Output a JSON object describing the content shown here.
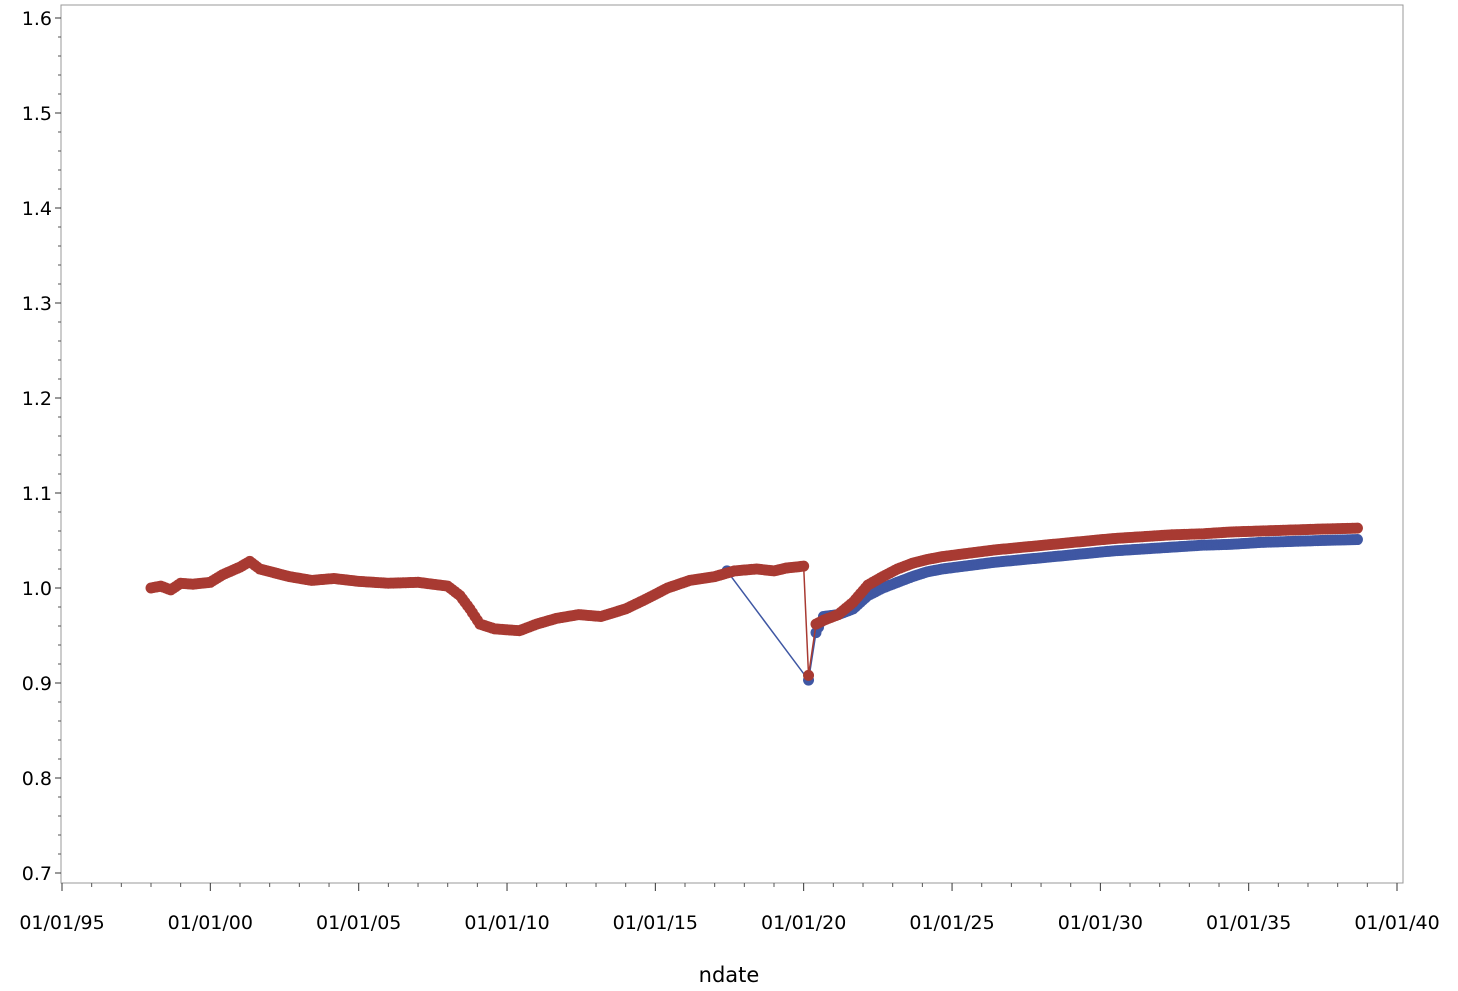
{
  "chart_data": {
    "type": "scatter",
    "title": "",
    "xlabel": "ndate",
    "ylabel": "",
    "x_range": [
      "1995-01-01",
      "2040-01-01"
    ],
    "ylim": [
      0.7,
      1.6
    ],
    "x_ticks": [
      {
        "date": "1995-01-01",
        "label": "01/01/95"
      },
      {
        "date": "2000-01-01",
        "label": "01/01/00"
      },
      {
        "date": "2005-01-01",
        "label": "01/01/05"
      },
      {
        "date": "2010-01-01",
        "label": "01/01/10"
      },
      {
        "date": "2015-01-01",
        "label": "01/01/15"
      },
      {
        "date": "2020-01-01",
        "label": "01/01/20"
      },
      {
        "date": "2025-01-01",
        "label": "01/01/25"
      },
      {
        "date": "2030-01-01",
        "label": "01/01/30"
      },
      {
        "date": "2035-01-01",
        "label": "01/01/35"
      },
      {
        "date": "2040-01-01",
        "label": "01/01/40"
      }
    ],
    "y_ticks": [
      {
        "value": 0.7,
        "label": "0.7"
      },
      {
        "value": 0.8,
        "label": "0.8"
      },
      {
        "value": 0.9,
        "label": "0.9"
      },
      {
        "value": 1.0,
        "label": "1.0"
      },
      {
        "value": 1.1,
        "label": "1.1"
      },
      {
        "value": 1.2,
        "label": "1.2"
      },
      {
        "value": 1.3,
        "label": "1.3"
      },
      {
        "value": 1.4,
        "label": "1.4"
      },
      {
        "value": 1.5,
        "label": "1.5"
      },
      {
        "value": 1.6,
        "label": "1.6"
      }
    ],
    "grid": false,
    "legend": "none",
    "series": [
      {
        "color": "#3f57a3",
        "points": [
          [
            "2017-06-01",
            1.018
          ],
          [
            "2020-03-01",
            0.903
          ],
          [
            "2020-06-01",
            0.953
          ],
          [
            "2020-09-01",
            0.97
          ],
          [
            "2021-03-01",
            0.972
          ],
          [
            "2021-09-01",
            0.978
          ],
          [
            "2022-03-01",
            0.992
          ],
          [
            "2022-09-01",
            1.0
          ],
          [
            "2023-03-01",
            1.006
          ],
          [
            "2023-09-01",
            1.012
          ],
          [
            "2024-03-01",
            1.017
          ],
          [
            "2024-09-01",
            1.02
          ],
          [
            "2025-06-01",
            1.023
          ],
          [
            "2026-06-01",
            1.027
          ],
          [
            "2027-06-01",
            1.03
          ],
          [
            "2028-06-01",
            1.033
          ],
          [
            "2029-06-01",
            1.036
          ],
          [
            "2030-06-01",
            1.039
          ],
          [
            "2031-06-01",
            1.041
          ],
          [
            "2032-06-01",
            1.043
          ],
          [
            "2033-06-01",
            1.045
          ],
          [
            "2034-06-01",
            1.046
          ],
          [
            "2035-06-01",
            1.048
          ],
          [
            "2036-06-01",
            1.049
          ],
          [
            "2037-06-01",
            1.05
          ],
          [
            "2038-09-01",
            1.051
          ]
        ]
      },
      {
        "color": "#a83a32",
        "points": [
          [
            "1998-01-01",
            1.0
          ],
          [
            "1998-05-01",
            1.002
          ],
          [
            "1998-09-01",
            0.998
          ],
          [
            "1999-01-01",
            1.005
          ],
          [
            "1999-06-01",
            1.004
          ],
          [
            "2000-01-01",
            1.006
          ],
          [
            "2000-06-01",
            1.014
          ],
          [
            "2001-01-01",
            1.022
          ],
          [
            "2001-05-01",
            1.028
          ],
          [
            "2001-09-01",
            1.02
          ],
          [
            "2002-03-01",
            1.016
          ],
          [
            "2002-09-01",
            1.012
          ],
          [
            "2003-06-01",
            1.008
          ],
          [
            "2004-03-01",
            1.01
          ],
          [
            "2005-01-01",
            1.007
          ],
          [
            "2006-01-01",
            1.005
          ],
          [
            "2007-01-01",
            1.006
          ],
          [
            "2008-01-01",
            1.002
          ],
          [
            "2008-06-01",
            0.992
          ],
          [
            "2008-10-01",
            0.978
          ],
          [
            "2009-02-01",
            0.962
          ],
          [
            "2009-08-01",
            0.957
          ],
          [
            "2010-06-01",
            0.955
          ],
          [
            "2011-01-01",
            0.962
          ],
          [
            "2011-09-01",
            0.968
          ],
          [
            "2012-06-01",
            0.972
          ],
          [
            "2013-03-01",
            0.97
          ],
          [
            "2014-01-01",
            0.978
          ],
          [
            "2014-09-01",
            0.988
          ],
          [
            "2015-06-01",
            1.0
          ],
          [
            "2016-03-01",
            1.008
          ],
          [
            "2017-01-01",
            1.012
          ],
          [
            "2017-09-01",
            1.018
          ],
          [
            "2018-06-01",
            1.02
          ],
          [
            "2019-01-01",
            1.018
          ],
          [
            "2019-06-01",
            1.021
          ],
          [
            "2020-01-01",
            1.023
          ],
          [
            "2020-03-01",
            0.908
          ],
          [
            "2020-06-01",
            0.962
          ],
          [
            "2020-09-01",
            0.966
          ],
          [
            "2021-03-01",
            0.972
          ],
          [
            "2021-09-01",
            0.985
          ],
          [
            "2022-03-01",
            1.003
          ],
          [
            "2022-09-01",
            1.012
          ],
          [
            "2023-03-01",
            1.02
          ],
          [
            "2023-09-01",
            1.026
          ],
          [
            "2024-03-01",
            1.03
          ],
          [
            "2024-09-01",
            1.033
          ],
          [
            "2025-06-01",
            1.036
          ],
          [
            "2026-06-01",
            1.04
          ],
          [
            "2027-06-01",
            1.043
          ],
          [
            "2028-06-01",
            1.046
          ],
          [
            "2029-06-01",
            1.049
          ],
          [
            "2030-06-01",
            1.052
          ],
          [
            "2031-06-01",
            1.054
          ],
          [
            "2032-06-01",
            1.056
          ],
          [
            "2033-06-01",
            1.057
          ],
          [
            "2034-06-01",
            1.059
          ],
          [
            "2035-06-01",
            1.06
          ],
          [
            "2036-06-01",
            1.061
          ],
          [
            "2037-06-01",
            1.062
          ],
          [
            "2038-09-01",
            1.063
          ]
        ]
      }
    ]
  }
}
